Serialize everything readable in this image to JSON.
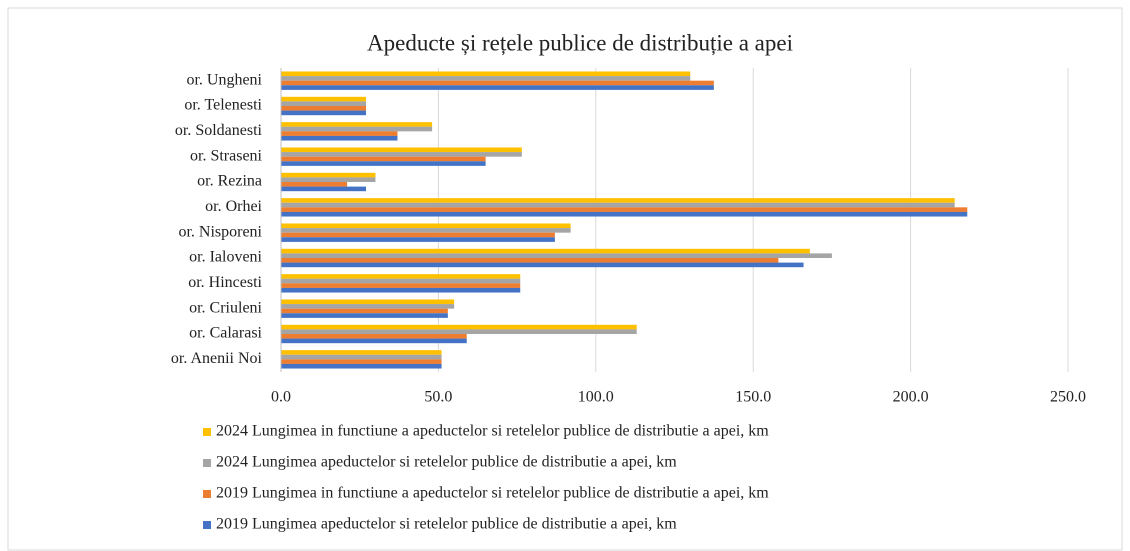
{
  "chart_data": {
    "type": "bar",
    "orientation": "horizontal",
    "title": "Apeducte și rețele publice  de distribuție  a apei",
    "categories": [
      "or. Ungheni",
      "or. Telenesti",
      "or. Soldanesti",
      "or. Straseni",
      "or. Rezina",
      "or. Orhei",
      "or. Nisporeni",
      "or. Ialoveni",
      "or. Hincesti",
      "or. Criuleni",
      "or. Calarasi",
      "or. Anenii Noi"
    ],
    "series": [
      {
        "name": "2024 Lungimea in functiune a apeductelor si retelelor publice de distributie a apei, km",
        "color": "#ffc000",
        "values": [
          130,
          27,
          48,
          76.5,
          30,
          214,
          92,
          168,
          76,
          55,
          113,
          51
        ]
      },
      {
        "name": "2024 Lungimea apeductelor si retelelor publice de distributie a apei, km",
        "color": "#a5a5a5",
        "values": [
          130,
          27,
          48,
          76.5,
          30,
          214,
          92,
          175,
          76,
          55,
          113,
          51
        ]
      },
      {
        "name": "2019 Lungimea in functiune a apeductelor si retelelor publice de distributie a apei, km",
        "color": "#ed7d31",
        "values": [
          137.5,
          27,
          37,
          65,
          21,
          218,
          87,
          158,
          76,
          53,
          59,
          51
        ]
      },
      {
        "name": "2019 Lungimea apeductelor si retelelor publice de distributie a apei, km",
        "color": "#4472c4",
        "values": [
          137.5,
          27,
          37,
          65,
          27,
          218,
          87,
          166,
          76,
          53,
          59,
          51
        ]
      }
    ],
    "xlim": [
      0,
      250
    ],
    "xticks": [
      {
        "value": 0,
        "label": "0.0"
      },
      {
        "value": 50,
        "label": "50.0"
      },
      {
        "value": 100,
        "label": "100.0"
      },
      {
        "value": 150,
        "label": "150.0"
      },
      {
        "value": 200,
        "label": "200.0"
      },
      {
        "value": 250,
        "label": "250.0"
      }
    ],
    "grid": true
  }
}
